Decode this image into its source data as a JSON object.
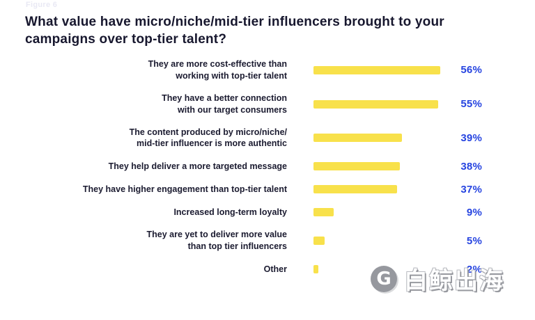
{
  "figure_label": "Figure 6",
  "title": "What value have micro/niche/mid-tier influencers brought to your campaigns over top-tier talent?",
  "chart_data": {
    "type": "bar",
    "orientation": "horizontal",
    "title": "What value have micro/niche/mid-tier influencers brought to your campaigns over top-tier talent?",
    "categories": [
      "They are more cost-effective than\nworking with top-tier talent",
      "They have a better connection\nwith our  target consumers",
      "The content produced by micro/niche/\nmid-tier influencer is more authentic",
      "They help deliver a more targeted message",
      "They have  higher engagement than top-tier talent",
      "Increased long-term loyalty",
      "They are yet to deliver more value\nthan top tier influencers",
      "Other"
    ],
    "values": [
      56,
      55,
      39,
      38,
      37,
      9,
      5,
      2
    ],
    "value_labels": [
      "56%",
      "55%",
      "39%",
      "38%",
      "37%",
      "9%",
      "5%",
      "2%"
    ],
    "xlim": [
      0,
      60
    ],
    "xlabel": "",
    "ylabel": "",
    "grid": false,
    "legend": "none",
    "bar_color": "#F8E14B",
    "value_color": "#2644E0"
  },
  "watermark": {
    "logo_letter": "G",
    "text": "白鲸出海"
  },
  "colors": {
    "title": "#17172E",
    "label": "#1B1B30",
    "figure_label": "#E9E9F4"
  }
}
